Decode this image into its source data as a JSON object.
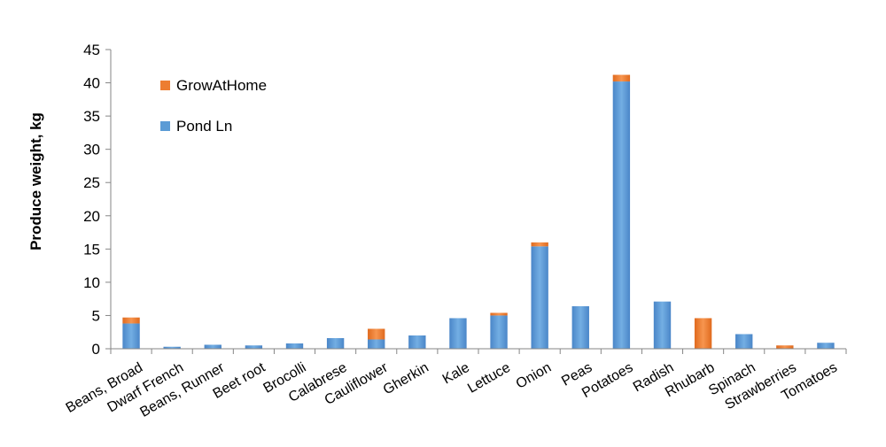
{
  "chart_data": {
    "type": "bar",
    "stacked": true,
    "categories": [
      "Beans, Broad",
      "Dwarf French",
      "Beans, Runner",
      "Beet root",
      "Brocolli",
      "Calabrese",
      "Cauliflower",
      "Gherkin",
      "Kale",
      "Lettuce",
      "Onion",
      "Peas",
      "Potatoes",
      "Radish",
      "Rhubarb",
      "Spinach",
      "Strawberries",
      "Tomatoes"
    ],
    "series": [
      {
        "name": "Pond Ln",
        "color": "#5b9bd5",
        "values": [
          3.8,
          0.3,
          0.6,
          0.5,
          0.8,
          1.6,
          1.4,
          2.0,
          4.6,
          5.0,
          15.4,
          6.4,
          40.2,
          7.1,
          0.0,
          2.2,
          0.0,
          0.9
        ]
      },
      {
        "name": "GrowAtHome",
        "color": "#ed7d31",
        "values": [
          0.9,
          0.0,
          0.0,
          0.0,
          0.0,
          0.0,
          1.6,
          0.0,
          0.0,
          0.4,
          0.6,
          0.0,
          1.0,
          0.0,
          4.6,
          0.0,
          0.5,
          0.0
        ]
      }
    ],
    "legend_order": [
      "GrowAtHome",
      "Pond Ln"
    ],
    "legend_position": "top-left",
    "ylabel": "Produce weight, kg",
    "xlabel": "",
    "ylim": [
      0,
      45
    ],
    "yticks": [
      0,
      5,
      10,
      15,
      20,
      25,
      30,
      35,
      40,
      45
    ],
    "grid": false
  }
}
